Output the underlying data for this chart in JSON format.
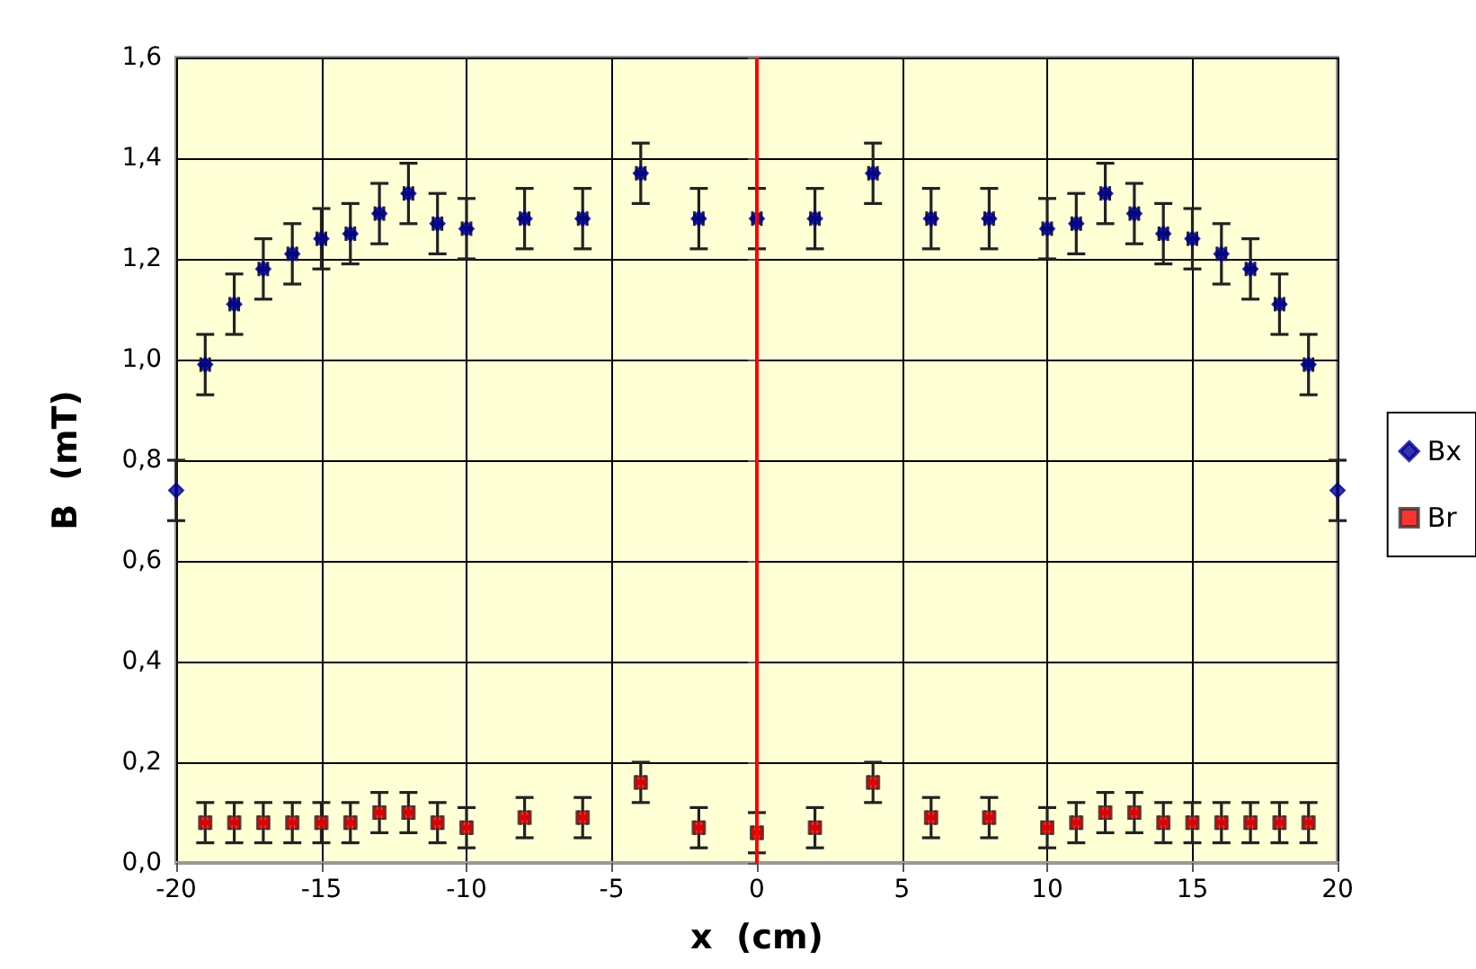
{
  "chart_data": {
    "type": "scatter",
    "xlabel": "x  (cm)",
    "ylabel": "B  (mT)",
    "x": [
      -20,
      -19,
      -18,
      -17,
      -16,
      -15,
      -14,
      -13,
      -12,
      -11,
      -10,
      -8,
      -6,
      -4,
      -2,
      0,
      2,
      4,
      6,
      8,
      10,
      11,
      12,
      13,
      14,
      15,
      16,
      17,
      18,
      19,
      20
    ],
    "series": [
      {
        "name": "Bx",
        "color": "#000099",
        "marker": "diamond",
        "values": [
          0.74,
          0.99,
          1.11,
          1.18,
          1.21,
          1.24,
          1.25,
          1.29,
          1.33,
          1.27,
          1.26,
          1.28,
          1.28,
          1.37,
          1.28,
          1.28,
          1.28,
          1.37,
          1.28,
          1.28,
          1.26,
          1.27,
          1.33,
          1.29,
          1.25,
          1.24,
          1.21,
          1.18,
          1.11,
          0.99,
          0.74
        ],
        "errors": [
          0.06,
          0.06,
          0.06,
          0.06,
          0.06,
          0.06,
          0.06,
          0.06,
          0.06,
          0.06,
          0.06,
          0.06,
          0.06,
          0.06,
          0.06,
          0.06,
          0.06,
          0.06,
          0.06,
          0.06,
          0.06,
          0.06,
          0.06,
          0.06,
          0.06,
          0.06,
          0.06,
          0.06,
          0.06,
          0.06,
          0.06
        ],
        "xerrors": [
          null,
          0.15,
          0.15,
          0.15,
          0.15,
          0.15,
          0.15,
          0.15,
          0.15,
          0.15,
          0.15,
          0.15,
          0.15,
          0.15,
          0.15,
          0.15,
          0.15,
          0.15,
          0.15,
          0.15,
          0.15,
          0.15,
          0.15,
          0.15,
          0.15,
          0.15,
          0.15,
          0.15,
          0.15,
          0.15,
          null
        ]
      },
      {
        "name": "Br",
        "color": "#ff0000",
        "marker": "square",
        "values": [
          null,
          0.08,
          0.08,
          0.08,
          0.08,
          0.08,
          0.08,
          0.1,
          0.1,
          0.08,
          0.07,
          0.09,
          0.09,
          0.16,
          0.07,
          0.06,
          0.07,
          0.16,
          0.09,
          0.09,
          0.07,
          0.08,
          0.1,
          0.1,
          0.08,
          0.08,
          0.08,
          0.08,
          0.08,
          0.08,
          null
        ],
        "errors": [
          null,
          0.04,
          0.04,
          0.04,
          0.04,
          0.04,
          0.04,
          0.04,
          0.04,
          0.04,
          0.04,
          0.04,
          0.04,
          0.04,
          0.04,
          0.04,
          0.04,
          0.04,
          0.04,
          0.04,
          0.04,
          0.04,
          0.04,
          0.04,
          0.04,
          0.04,
          0.04,
          0.04,
          0.04,
          0.04,
          null
        ],
        "xerrors": [
          null,
          0.15,
          0.15,
          0.15,
          0.15,
          0.15,
          0.15,
          0.15,
          0.15,
          0.15,
          0.15,
          0.15,
          0.15,
          0.15,
          0.15,
          0.15,
          0.15,
          0.15,
          0.15,
          0.15,
          0.15,
          0.15,
          0.15,
          0.15,
          0.15,
          0.15,
          0.15,
          0.15,
          0.15,
          0.15,
          null
        ]
      }
    ],
    "xlim": [
      -20,
      20
    ],
    "xticks": [
      -20,
      -15,
      -10,
      -5,
      0,
      5,
      10,
      15,
      20
    ],
    "ylim": [
      0,
      1.6
    ],
    "yticks": [
      {
        "value": 0,
        "label": "0,0"
      },
      {
        "value": 0.2,
        "label": "0,2"
      },
      {
        "value": 0.4,
        "label": "0,4"
      },
      {
        "value": 0.6,
        "label": "0,6"
      },
      {
        "value": 0.8,
        "label": "0,8"
      },
      {
        "value": 1.0,
        "label": "1,0"
      },
      {
        "value": 1.2,
        "label": "1,2"
      },
      {
        "value": 1.4,
        "label": "1,4"
      },
      {
        "value": 1.6,
        "label": "1,6"
      }
    ],
    "ref_lines": [
      {
        "axis": "x",
        "value": 0,
        "color": "#ff0000"
      }
    ],
    "grid": true,
    "legend": "right"
  }
}
